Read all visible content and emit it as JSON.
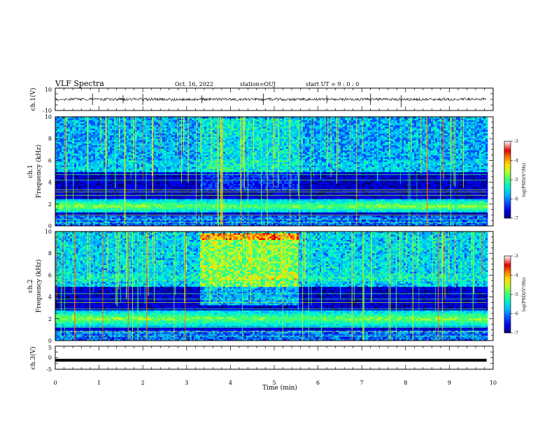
{
  "header": {
    "title": "VLF Spectra",
    "date": "Oct. 16, 2022",
    "station": "station=OUJ",
    "start_ut": "start  UT =  9 : 0 : 0"
  },
  "chart_data": [
    {
      "type": "line",
      "name": "ch1-waveform",
      "ylabel": "ch.1(V)",
      "ylim": [
        -10,
        10
      ],
      "yticks": [
        "10",
        "-10"
      ],
      "xlim": [
        0,
        10
      ],
      "baseline": 0,
      "noise_amplitude": 1.2,
      "spikes_min": [
        0.85,
        1.55,
        2.0,
        3.35,
        4.75,
        6.2,
        7.2,
        7.9
      ]
    },
    {
      "type": "heatmap",
      "name": "ch1-spectrogram",
      "ylabel": "ch.1\nFrequency  (kHz)",
      "ylim": [
        0,
        10
      ],
      "yticks": [
        "0",
        "2",
        "4",
        "6",
        "8",
        "10"
      ],
      "xlim": [
        0,
        9.85
      ],
      "colorbar": {
        "label": "log(PSD)(V²/Hz)",
        "range": [
          -7,
          -3
        ],
        "ticks": [
          "-3",
          "-4",
          "-5",
          "-6",
          "-7"
        ]
      },
      "features": {
        "band_khz": [
          1.2,
          2.4
        ],
        "upper_activity_khz": [
          5.0,
          10.0
        ],
        "noise_lines_khz": [
          0.3,
          0.6,
          1.0,
          2.8,
          3.1,
          3.3,
          4.2,
          4.7
        ],
        "event_window_min": [
          3.3,
          5.55
        ]
      }
    },
    {
      "type": "heatmap",
      "name": "ch2-spectrogram",
      "ylabel": "ch.2\nFrequency  (kHz)",
      "ylim": [
        0,
        10
      ],
      "yticks": [
        "0",
        "2",
        "4",
        "6",
        "8",
        "10"
      ],
      "xlim": [
        0,
        9.85
      ],
      "colorbar": {
        "label": "log(PSD)(V²/Hz)",
        "range": [
          -7,
          -3
        ],
        "ticks": [
          "-3",
          "-4",
          "-5",
          "-6",
          "-7"
        ]
      },
      "features": {
        "band_khz": [
          1.3,
          2.7
        ],
        "upper_activity_khz": [
          5.0,
          10.0
        ],
        "noise_lines_khz": [
          0.4,
          0.8,
          1.2,
          2.9,
          3.5,
          3.8,
          4.3,
          5.5,
          6.1
        ],
        "event_window_min": [
          3.3,
          5.55
        ]
      }
    },
    {
      "type": "line",
      "name": "ch3-waveform",
      "ylabel": "ch.3(V)",
      "ylim": [
        -5,
        5
      ],
      "yticks": [
        "5",
        "0",
        "-5"
      ],
      "xlim": [
        0,
        10
      ],
      "baseline": -1.1
    }
  ],
  "xaxis": {
    "label": "Time  (min)",
    "ticks": [
      "0",
      "1",
      "2",
      "3",
      "4",
      "5",
      "6",
      "7",
      "8",
      "9",
      "10"
    ]
  },
  "colors": {
    "colormap": [
      "#00007a",
      "#0000e6",
      "#0050ff",
      "#00b4ff",
      "#00f0d2",
      "#3cff78",
      "#b4ff28",
      "#ffdc00",
      "#ff6e00",
      "#e10000",
      "#ff9696",
      "#ffffff"
    ]
  }
}
